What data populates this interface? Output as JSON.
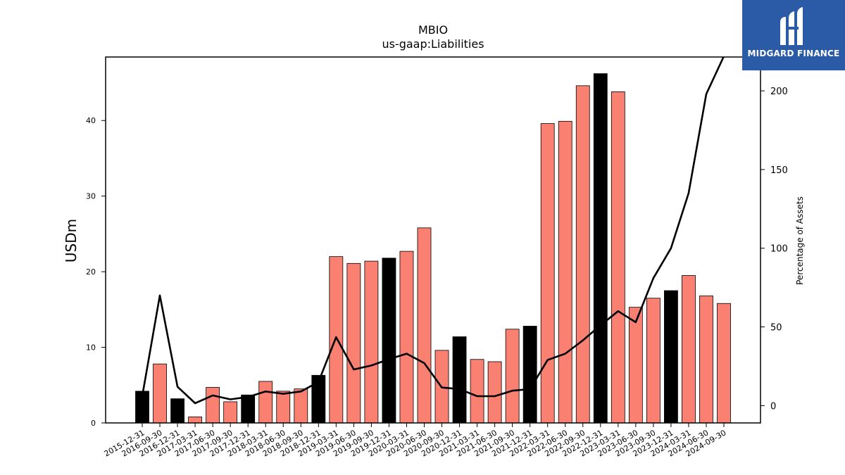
{
  "chart_data": {
    "type": "bar",
    "title": "MBIO",
    "subtitle": "us-gaap:Liabilities",
    "ylabel": "USDm",
    "y2label": "Percentage of Assets",
    "ylim": [
      0,
      48.4
    ],
    "y2lim": [
      -11,
      221.5
    ],
    "yticks": [
      0,
      10,
      20,
      30,
      40
    ],
    "y2ticks": [
      0,
      50,
      100,
      150,
      200
    ],
    "categories": [
      "2015-12-31",
      "2016-09-30",
      "2016-12-31",
      "2017-03-31",
      "2017-06-30",
      "2017-09-30",
      "2017-12-31",
      "2018-03-31",
      "2018-06-30",
      "2018-09-30",
      "2018-12-31",
      "2019-03-31",
      "2019-06-30",
      "2019-09-30",
      "2019-12-31",
      "2020-03-31",
      "2020-06-30",
      "2020-09-30",
      "2020-12-31",
      "2021-03-31",
      "2021-06-30",
      "2021-09-30",
      "2021-12-31",
      "2022-03-31",
      "2022-06-30",
      "2022-09-30",
      "2022-12-31",
      "2023-03-31",
      "2023-06-30",
      "2023-09-30",
      "2023-12-31",
      "2024-03-31",
      "2024-06-30",
      "2024-09-30"
    ],
    "series": [
      {
        "kind": "bar",
        "values": [
          4.2,
          7.8,
          3.2,
          0.8,
          4.7,
          2.8,
          3.7,
          5.5,
          4.2,
          4.5,
          6.3,
          22.0,
          21.1,
          21.4,
          21.8,
          22.7,
          25.8,
          9.6,
          11.4,
          8.4,
          8.1,
          12.4,
          12.8,
          39.6,
          39.9,
          44.6,
          46.2,
          43.8,
          15.3,
          16.5,
          17.5,
          19.5,
          16.8,
          15.8
        ],
        "annual": [
          true,
          false,
          true,
          false,
          false,
          false,
          true,
          false,
          false,
          false,
          true,
          false,
          false,
          false,
          true,
          false,
          false,
          false,
          true,
          false,
          false,
          false,
          true,
          false,
          false,
          false,
          true,
          false,
          false,
          false,
          true,
          false,
          false,
          false
        ]
      },
      {
        "kind": "line",
        "axis": "right",
        "values": [
          6,
          70,
          12,
          1.5,
          6.5,
          4,
          5.5,
          9,
          7.5,
          9,
          15,
          43.5,
          23,
          25.5,
          29.5,
          33,
          27,
          11.5,
          10.5,
          6,
          6,
          9.5,
          10.5,
          29,
          33,
          41.5,
          51,
          60,
          53,
          81,
          100,
          135,
          198,
          222
        ]
      }
    ],
    "colors": {
      "bar_quarter": "#fa8072",
      "bar_annual": "#000000",
      "line": "#000000"
    }
  },
  "logo": {
    "text": "MIDGARD FINANCE"
  }
}
